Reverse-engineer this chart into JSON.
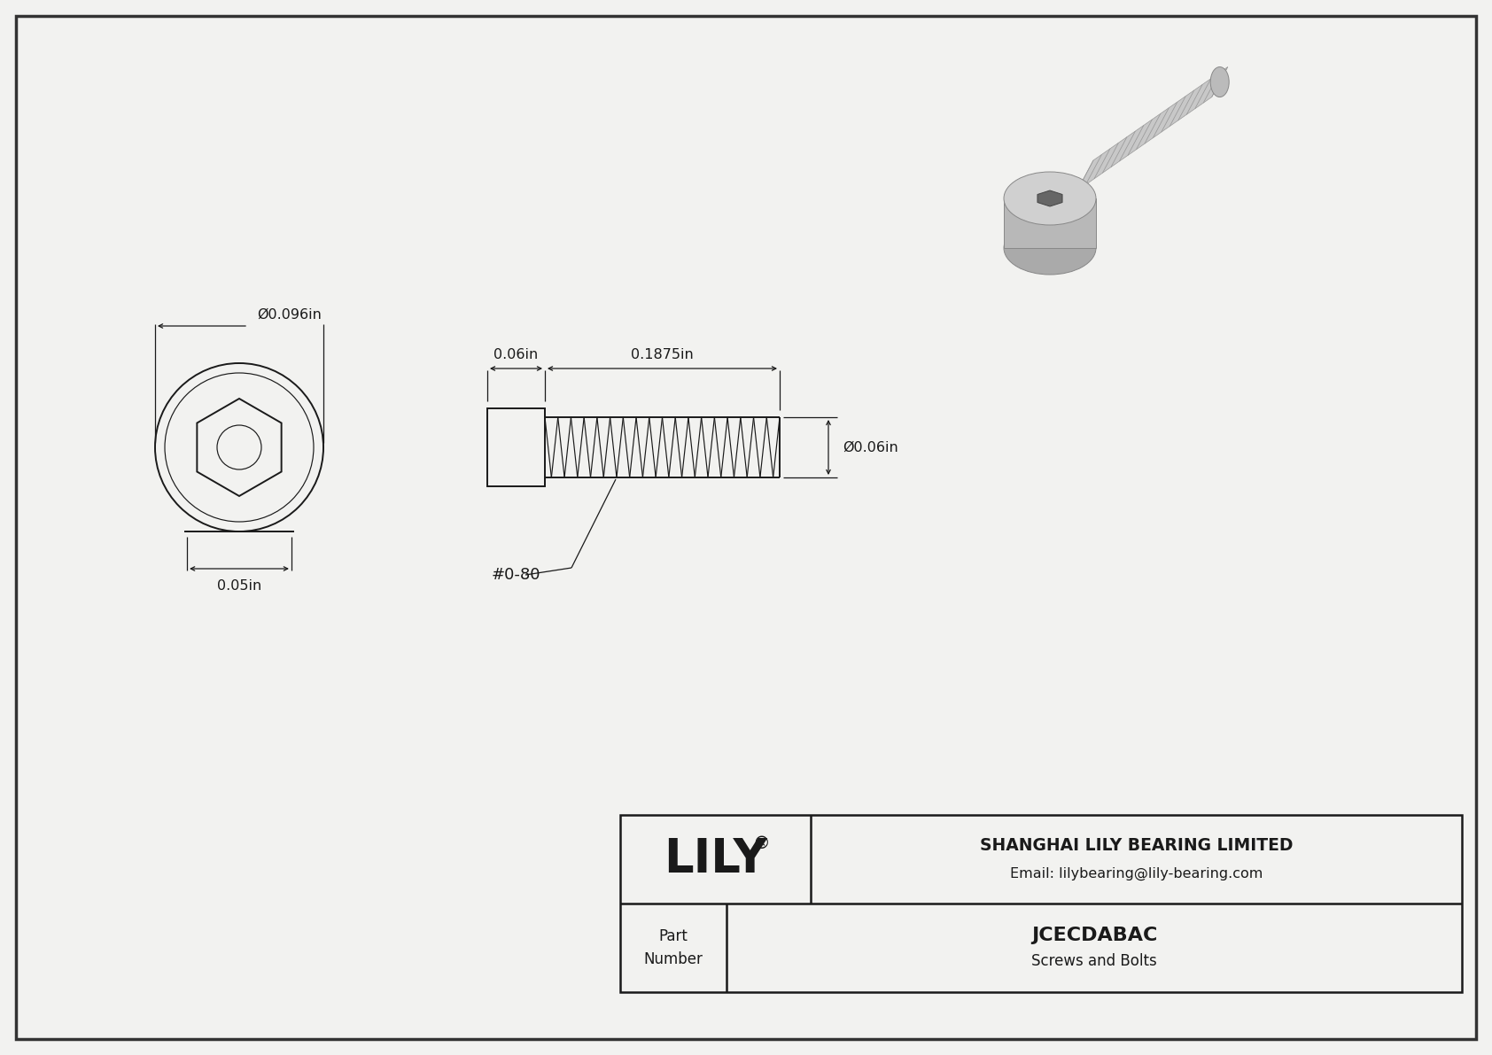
{
  "bg_color": "#f2f2f0",
  "line_color": "#1a1a1a",
  "border_color": "#1a1a1a",
  "title_company": "SHANGHAI LILY BEARING LIMITED",
  "title_email": "Email: lilybearing@lily-bearing.com",
  "part_number": "JCECDABAC",
  "part_category": "Screws and Bolts",
  "dim_head_diameter": "Ø0.096in",
  "dim_head_height": "0.05in",
  "dim_thread_length": "0.1875in",
  "dim_shank_length": "0.06in",
  "dim_thread_diameter": "Ø0.06in",
  "thread_label": "#0-80",
  "lily_text": "LILY",
  "registered_mark": "®",
  "part_label": "Part\nNumber"
}
